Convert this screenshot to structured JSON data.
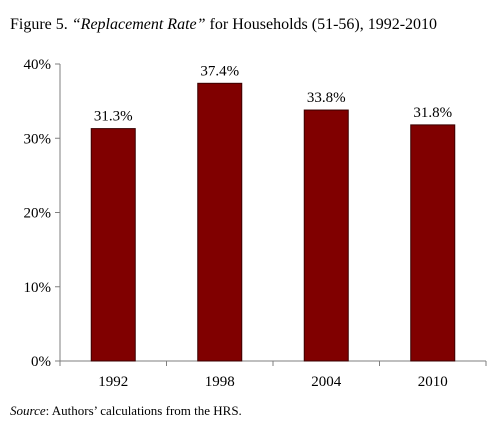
{
  "figure": {
    "label": "Figure 5.",
    "title_quoted": "“Replacement Rate”",
    "title_rest": " for Households (51-56), 1992-2010",
    "source_label": "Source",
    "source_text": ": Authors’ calculations from the HRS."
  },
  "chart_data": {
    "type": "bar",
    "title": "Figure 5. “Replacement Rate” for Households (51-56), 1992-2010",
    "categories": [
      "1992",
      "1998",
      "2004",
      "2010"
    ],
    "values": [
      31.3,
      37.4,
      33.8,
      31.8
    ],
    "data_labels": [
      "31.3%",
      "37.4%",
      "33.8%",
      "31.8%"
    ],
    "ylim": [
      0,
      40
    ],
    "yticks": [
      0,
      10,
      20,
      30,
      40
    ],
    "ytick_labels": [
      "0%",
      "10%",
      "20%",
      "30%",
      "40%"
    ],
    "xlabel": "",
    "ylabel": "",
    "grid": false,
    "legend": "none",
    "bar_color": "#800000",
    "bar_edge_color": "#3a0000"
  }
}
